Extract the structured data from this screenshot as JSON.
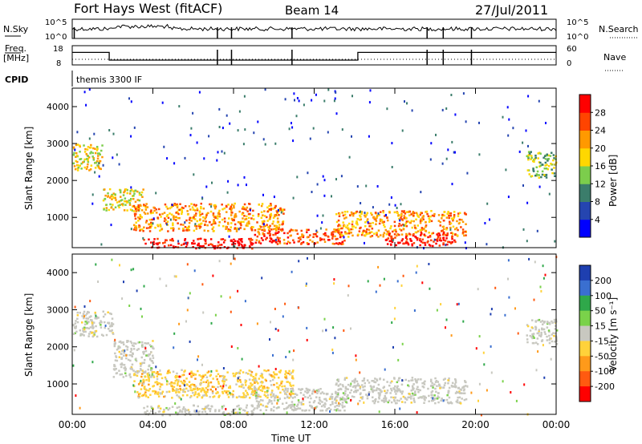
{
  "header": {
    "station": "Fort Hays West (fitACF)",
    "beam": "Beam 14",
    "date": "27/Jul/2011"
  },
  "strip_labels": {
    "nsky": "N.Sky",
    "nsky_ticks": [
      "10^5",
      "10^0"
    ],
    "nsearch": "N.Search",
    "nsearch_ticks": [
      "10^5",
      "10^0"
    ],
    "freq_top": "Freq.",
    "freq_unit": "[MHz]",
    "freq_ticks": [
      "18",
      "8"
    ],
    "nave": "Nave",
    "nave_ticks": [
      "60",
      "0"
    ],
    "cpid": "CPID",
    "program": "themis 3300 IF"
  },
  "chart_data": [
    {
      "type": "line",
      "title": "",
      "xlabel": "",
      "ylabel": "Freq. [MHz]",
      "ylim": [
        8,
        18
      ],
      "series": [
        {
          "name": "Freq.",
          "x": [
            "00:00",
            "01:50",
            "01:50",
            "14:10",
            "14:10",
            "24:00"
          ],
          "values": [
            14.5,
            14.5,
            10.5,
            10.5,
            14.5,
            14.5
          ]
        }
      ]
    },
    {
      "type": "heatmap",
      "title": "",
      "xlabel": "Time UT",
      "ylabel": "Slant Range [km]",
      "x_ticks": [
        "00:00",
        "04:00",
        "08:00",
        "12:00",
        "16:00",
        "20:00",
        "00:00"
      ],
      "y_ticks": [
        "1000",
        "2000",
        "3000",
        "4000"
      ],
      "xlim_hours": [
        0,
        24
      ],
      "ylim": [
        180,
        4500
      ],
      "colorbar": {
        "label": "Power [dB]",
        "ticks": [
          "4",
          "8",
          "12",
          "16",
          "20",
          "24",
          "28"
        ],
        "colors": [
          "#0000ff",
          "#2545b0",
          "#3b7d6b",
          "#7ccd4c",
          "#ffd700",
          "#ff9900",
          "#ff4400",
          "#ff0000"
        ]
      },
      "regions": [
        {
          "t": [
            0.0,
            1.5
          ],
          "r": [
            2300,
            3000
          ],
          "level": 4
        },
        {
          "t": [
            1.5,
            3.5
          ],
          "r": [
            1200,
            1800
          ],
          "level": 4
        },
        {
          "t": [
            3.0,
            10.5
          ],
          "r": [
            650,
            1400
          ],
          "level": 5
        },
        {
          "t": [
            3.5,
            9.0
          ],
          "r": [
            180,
            450
          ],
          "level": 7
        },
        {
          "t": [
            9.0,
            13.5
          ],
          "r": [
            300,
            700
          ],
          "level": 6
        },
        {
          "t": [
            13.0,
            19.5
          ],
          "r": [
            500,
            1200
          ],
          "level": 5
        },
        {
          "t": [
            15.5,
            19.0
          ],
          "r": [
            250,
            600
          ],
          "level": 7
        },
        {
          "t": [
            22.5,
            24.0
          ],
          "r": [
            2100,
            2800
          ],
          "level": 3
        }
      ]
    },
    {
      "type": "heatmap",
      "title": "",
      "xlabel": "Time UT",
      "ylabel": "Slant Range [km]",
      "x_ticks": [
        "00:00",
        "04:00",
        "08:00",
        "12:00",
        "16:00",
        "20:00",
        "00:00"
      ],
      "y_ticks": [
        "1000",
        "2000",
        "3000",
        "4000"
      ],
      "xlim_hours": [
        0,
        24
      ],
      "ylim": [
        180,
        4500
      ],
      "colorbar": {
        "label": "Velocity [m s⁻¹]",
        "ticks": [
          "200",
          "100",
          "50",
          "15",
          "-15",
          "-50",
          "-100",
          "-200"
        ],
        "colors": [
          "#1e3fb0",
          "#3a6fd0",
          "#2fa84a",
          "#7ad24a",
          "#c8c8c0",
          "#ffd23a",
          "#ff9a1a",
          "#ff5a10",
          "#ff0000"
        ]
      },
      "regions": [
        {
          "t": [
            0.0,
            2.0
          ],
          "r": [
            2300,
            3000
          ],
          "vel_class": "ground"
        },
        {
          "t": [
            2.0,
            4.0
          ],
          "r": [
            1200,
            2200
          ],
          "vel_class": "ground"
        },
        {
          "t": [
            3.0,
            11.0
          ],
          "r": [
            650,
            1400
          ],
          "vel_class": "-50"
        },
        {
          "t": [
            3.5,
            9.0
          ],
          "r": [
            180,
            450
          ],
          "vel_class": "ground"
        },
        {
          "t": [
            9.0,
            13.5
          ],
          "r": [
            300,
            900
          ],
          "vel_class": "ground"
        },
        {
          "t": [
            13.0,
            19.5
          ],
          "r": [
            500,
            1200
          ],
          "vel_class": "ground"
        },
        {
          "t": [
            22.5,
            24.0
          ],
          "r": [
            2100,
            2800
          ],
          "vel_class": "ground"
        }
      ]
    }
  ]
}
